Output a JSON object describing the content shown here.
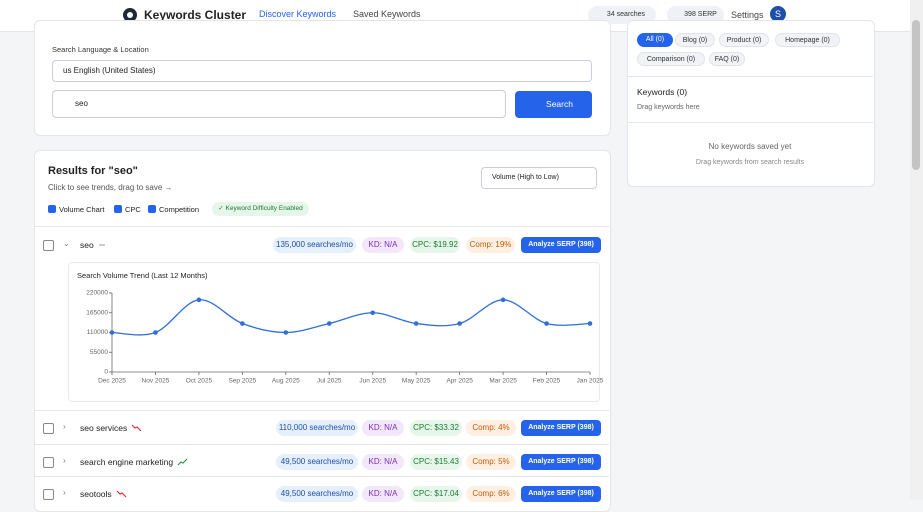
{
  "header": {
    "title": "Keywords Cluster",
    "tabs": [
      "Discover Keywords",
      "Saved Keywords"
    ],
    "searches": "34 searches",
    "serp": "398 SERP",
    "settings": "Settings",
    "avatar": "S"
  },
  "search": {
    "label": "Search Language & Location",
    "language": "us English (United States)",
    "query": "seo",
    "button": "Search"
  },
  "results": {
    "title": "Results for \"seo\"",
    "hint": "Click to see trends, drag to save →",
    "sort": "Volume (High to Low)",
    "options": [
      "Volume Chart",
      "CPC",
      "Competition"
    ],
    "kd_badge": "✓ Keyword Difficulty Enabled",
    "rows": [
      {
        "keyword": "seo",
        "volume": "135,000 searches/mo",
        "kd": "KD: N/A",
        "cpc": "CPC: $19.92",
        "comp": "Comp: 19%",
        "action": "Analyze SERP (398)"
      },
      {
        "keyword": "seo services",
        "volume": "110,000 searches/mo",
        "kd": "KD: N/A",
        "cpc": "CPC: $33.32",
        "comp": "Comp: 4%",
        "action": "Analyze SERP (398)"
      },
      {
        "keyword": "search engine marketing",
        "volume": "49,500 searches/mo",
        "kd": "KD: N/A",
        "cpc": "CPC: $15.43",
        "comp": "Comp: 5%",
        "action": "Analyze SERP (398)"
      },
      {
        "keyword": "seotools",
        "volume": "49,500 searches/mo",
        "kd": "KD: N/A",
        "cpc": "CPC: $17.04",
        "comp": "Comp: 6%",
        "action": "Analyze SERP (398)"
      }
    ]
  },
  "sidebar": {
    "filters": [
      "All (0)",
      "Blog (0)",
      "Product (0)",
      "Homepage (0)",
      "Comparison (0)",
      "FAQ (0)"
    ],
    "heading": "Keywords (0)",
    "drop_hint": "Drag keywords here",
    "empty": "No keywords saved yet",
    "empty_hint": "Drag keywords from search results"
  },
  "chart_data": {
    "type": "line",
    "title": "Search Volume Trend (Last 12 Months)",
    "color": "#2f6fd6",
    "categories": [
      "Dec 2025",
      "Nov 2025",
      "Oct 2025",
      "Sep 2025",
      "Aug 2025",
      "Jul 2025",
      "Jun 2025",
      "May 2025",
      "Apr 2025",
      "Mar 2025",
      "Feb 2025",
      "Jan 2025"
    ],
    "values": [
      110000,
      110000,
      201000,
      135000,
      110000,
      135000,
      165000,
      135000,
      135000,
      201000,
      135000,
      135000
    ],
    "ylim": [
      0,
      220000
    ],
    "yticks": [
      0,
      55000,
      110000,
      165000,
      220000
    ]
  }
}
